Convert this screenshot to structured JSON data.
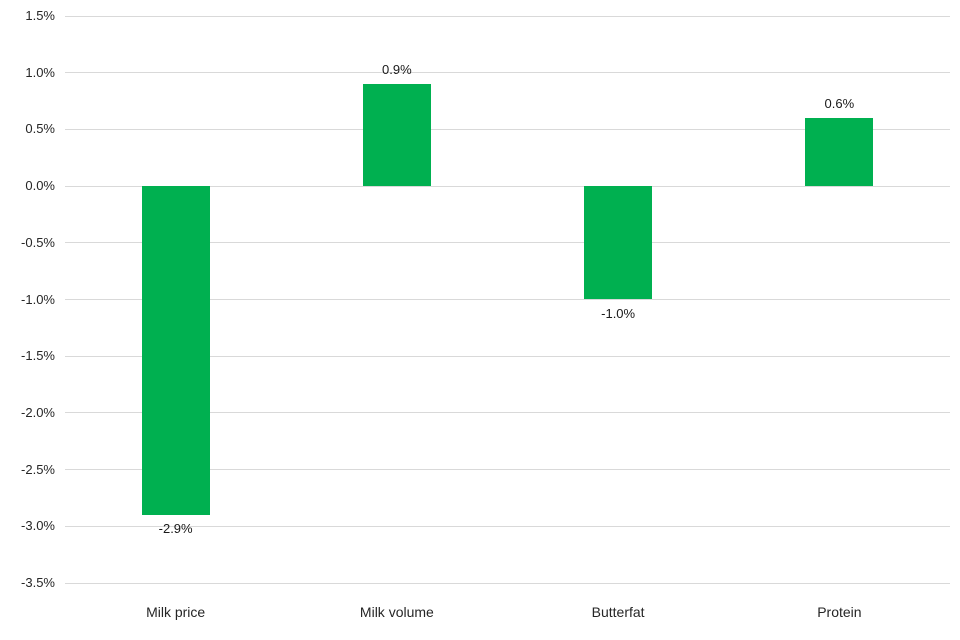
{
  "chart_data": {
    "type": "bar",
    "categories": [
      "Milk price",
      "Milk volume",
      "Butterfat",
      "Protein"
    ],
    "values": [
      -2.9,
      0.9,
      -1.0,
      0.6
    ],
    "value_labels": [
      "-2.9%",
      "0.9%",
      "-1.0%",
      "0.6%"
    ],
    "title": "",
    "xlabel": "",
    "ylabel": "",
    "ylim": [
      -3.5,
      1.5
    ],
    "ytick_step": 0.5,
    "ytick_labels": [
      "1.5%",
      "1.0%",
      "0.5%",
      "0.0%",
      "-0.5%",
      "-1.0%",
      "-1.5%",
      "-2.0%",
      "-2.5%",
      "-3.0%",
      "-3.5%"
    ],
    "grid": true,
    "legend": false,
    "colors": {
      "bar": "#00b050",
      "gridline": "#d9d9d9",
      "tick_text": "#262626",
      "label_text": "#1a1a1a"
    }
  }
}
